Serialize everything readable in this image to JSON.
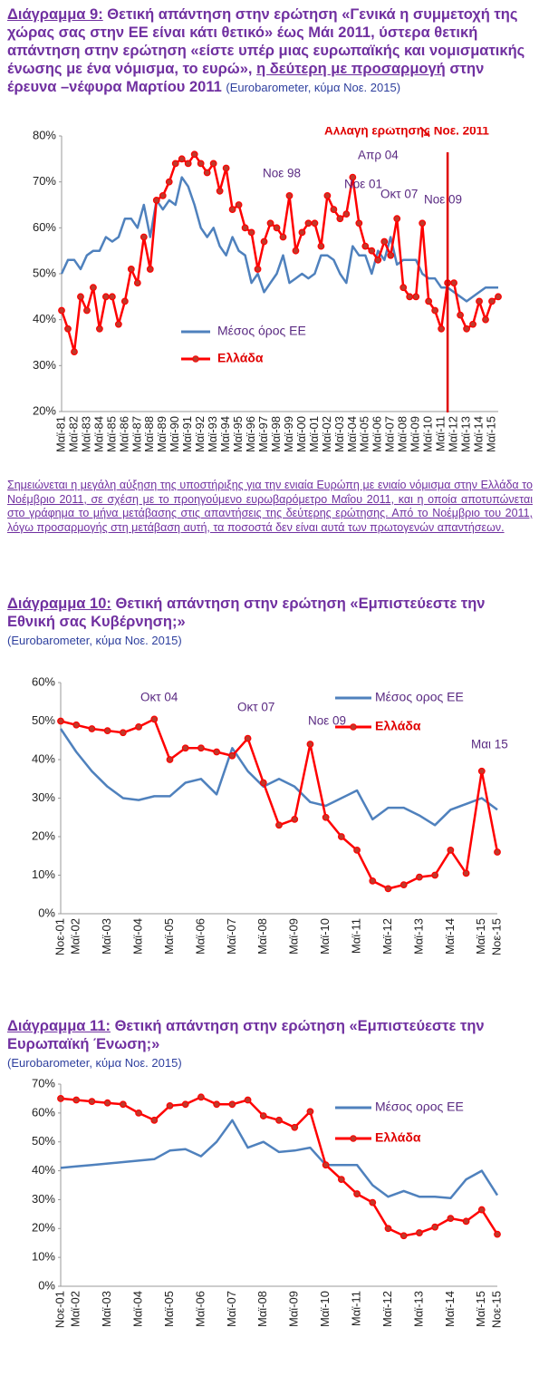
{
  "chart_data": [
    {
      "type": "line",
      "label": "Διάγραμμα 9:",
      "title": "Θετική απάντηση στην ερώτηση «Γενικά η συμμετοχή της χώρας σας στην ΕΕ είναι κάτι θετικό» έως Μάι 2011, ύστερα θετική απάντηση στην ερώτηση «είστε υπέρ μιας ευρωπαϊκής και νομισματικής ένωσης με ένα νόμισμα, το ευρώ»,",
      "title_underlined": "η δεύτερη με προσαρμογή",
      "title_end": "στην έρευνα –νέφυρα Μαρτίου 2011",
      "source": "(Eurobarometer, κύμα Νοε. 2015)",
      "categories": [
        "Μαϊ-81",
        null,
        "Μαϊ-82",
        null,
        "Μαϊ-83",
        null,
        "Μαϊ-84",
        null,
        "Μαϊ-85",
        null,
        "Μαϊ-86",
        null,
        "Μαϊ-87",
        null,
        "Μαϊ-88",
        null,
        "Μαϊ-89",
        null,
        "Μαϊ-90",
        null,
        "Μαϊ-91",
        null,
        "Μαϊ-92",
        null,
        "Μαϊ-93",
        null,
        "Μαϊ-94",
        null,
        "Μαϊ-95",
        null,
        "Μαϊ-96",
        null,
        "Μαϊ-97",
        null,
        "Μαϊ-98",
        null,
        "Μαϊ-99",
        null,
        "Μαϊ-00",
        null,
        "Μαϊ-01",
        null,
        "Μαϊ-02",
        null,
        "Μαϊ-03",
        null,
        "Μαϊ-04",
        null,
        "Μαϊ-05",
        null,
        "Μαϊ-06",
        null,
        "Μαϊ-07",
        null,
        "Μαϊ-08",
        null,
        "Μαϊ-09",
        null,
        "Μαϊ-10",
        null,
        "Μαϊ-11",
        null,
        "Μαϊ-12",
        null,
        "Μαϊ-13",
        null,
        "Μαϊ-14",
        null,
        "Μαϊ-15",
        null
      ],
      "series": [
        {
          "name": "Μέσος όρος ΕΕ",
          "color": "#4f81bd",
          "values": [
            50,
            53,
            53,
            51,
            54,
            55,
            55,
            58,
            57,
            58,
            62,
            62,
            60,
            65,
            58,
            66,
            64,
            66,
            65,
            71,
            69,
            65,
            60,
            58,
            60,
            56,
            54,
            58,
            55,
            54,
            48,
            50,
            46,
            48,
            50,
            54,
            48,
            49,
            50,
            49,
            50,
            54,
            54,
            53,
            50,
            48,
            56,
            54,
            54,
            50,
            55,
            53,
            58,
            52,
            53,
            53,
            53,
            50,
            49,
            49,
            47,
            47,
            46,
            45,
            44,
            45,
            46,
            47,
            47,
            47
          ]
        },
        {
          "name": "Ελλάδα",
          "color": "#ff0000",
          "values": [
            42,
            38,
            33,
            45,
            42,
            47,
            38,
            45,
            45,
            39,
            44,
            51,
            48,
            58,
            51,
            66,
            67,
            70,
            74,
            75,
            74,
            76,
            74,
            72,
            74,
            68,
            73,
            64,
            65,
            60,
            59,
            51,
            57,
            61,
            60,
            58,
            67,
            55,
            59,
            61,
            61,
            56,
            67,
            64,
            62,
            63,
            71,
            61,
            56,
            55,
            53,
            57,
            54,
            62,
            47,
            45,
            45,
            61,
            44,
            42,
            38,
            48,
            48,
            41,
            38,
            39,
            44,
            40,
            44,
            45
          ]
        }
      ],
      "ylim": [
        20,
        80
      ],
      "yticks": [
        {
          "value": 20,
          "label": "20%"
        },
        {
          "value": 30,
          "label": "30%"
        },
        {
          "value": 40,
          "label": "40%"
        },
        {
          "value": 50,
          "label": "50%"
        },
        {
          "value": 60,
          "label": "60%"
        },
        {
          "value": 70,
          "label": "70%"
        },
        {
          "value": 80,
          "label": "80%"
        }
      ],
      "grid": false,
      "legend": "lower left",
      "annotations": [
        "Αλλαγή ερώτησης Νοε. 2011",
        "Νοε 98",
        "Νοε 01",
        "Απρ 04",
        "Οκτ 07",
        "Νοε 09"
      ]
    },
    {
      "type": "line",
      "label": "Διάγραμμα 10:",
      "title": "Θετική απάντηση στην ερώτηση «Εμπιστεύεστε την Εθνική σας Κυβέρνηση;»",
      "source": "(Eurobarometer, κύμα Νοε. 2015)",
      "categories": [
        "Νοε-01",
        "Μαϊ-02",
        null,
        "Μαϊ-03",
        null,
        "Μαϊ-04",
        null,
        "Μαϊ-05",
        null,
        "Μαϊ-06",
        null,
        "Μαϊ-07",
        null,
        "Μαϊ-08",
        null,
        "Μαϊ-09",
        null,
        "Μαϊ-10",
        null,
        "Μαϊ-11",
        null,
        "Μαϊ-12",
        null,
        "Μαϊ-13",
        null,
        "Μαϊ-14",
        null,
        "Μαϊ-15",
        "Νοε-15"
      ],
      "series": [
        {
          "name": "Μέσος ορος ΕΕ",
          "color": "#4f81bd",
          "values": [
            48,
            42,
            37,
            33,
            30,
            29.5,
            30.5,
            30.5,
            34,
            35,
            31,
            43,
            37,
            33,
            35,
            33,
            29,
            28,
            30,
            32,
            24.5,
            27.5,
            27.5,
            25.5,
            23,
            27,
            28.5,
            30,
            27
          ]
        },
        {
          "name": "Ελλάδα",
          "color": "#ff0000",
          "values": [
            50,
            49,
            48,
            47.5,
            47,
            48.5,
            50.5,
            40,
            43,
            43,
            42,
            41,
            45.5,
            34,
            23,
            24.5,
            44,
            25,
            20,
            16.5,
            8.5,
            6.5,
            7.5,
            9.5,
            10,
            16.5,
            10.5,
            37,
            16
          ]
        }
      ],
      "ylim": [
        0,
        60
      ],
      "yticks": [
        {
          "value": 0,
          "label": "0%"
        },
        {
          "value": 10,
          "label": "10%"
        },
        {
          "value": 20,
          "label": "20%"
        },
        {
          "value": 30,
          "label": "30%"
        },
        {
          "value": 40,
          "label": "40%"
        },
        {
          "value": 50,
          "label": "50%"
        },
        {
          "value": 60,
          "label": "60%"
        }
      ],
      "grid": false,
      "legend": "upper right",
      "annotations": [
        "Οκτ 04",
        "Οκτ 07",
        "Νοε 09",
        "Μαι 15"
      ]
    },
    {
      "type": "line",
      "label": "Διάγραμμα 11:",
      "title": "Θετική απάντηση στην ερώτηση «Εμπιστεύεστε την Ευρωπαϊκή Ένωση;»",
      "source": "(Eurobarometer, κύμα Νοε. 2015)",
      "categories": [
        "Νοε-01",
        "Μαϊ-02",
        null,
        "Μαϊ-03",
        null,
        "Μαϊ-04",
        null,
        "Μαϊ-05",
        null,
        "Μαϊ-06",
        null,
        "Μαϊ-07",
        null,
        "Μαϊ-08",
        null,
        "Μαϊ-09",
        null,
        "Μαϊ-10",
        null,
        "Μαϊ-11",
        null,
        "Μαϊ-12",
        null,
        "Μαϊ-13",
        null,
        "Μαϊ-14",
        null,
        "Μαϊ-15",
        "Νοε-15"
      ],
      "series": [
        {
          "name": "Μέσος ορος ΕΕ",
          "color": "#4f81bd",
          "values": [
            41,
            41.5,
            42,
            42.5,
            43,
            43.5,
            44,
            47,
            47.5,
            45,
            50,
            57.5,
            48,
            50,
            46.5,
            47,
            48,
            42,
            42,
            42,
            35,
            31,
            33,
            31,
            31,
            30.5,
            37,
            40,
            31.5
          ]
        },
        {
          "name": "Ελλάδα",
          "color": "#ff0000",
          "values": [
            65,
            64.5,
            64,
            63.5,
            63,
            60,
            57.5,
            62.5,
            63,
            65.5,
            63,
            63,
            64.5,
            59,
            57.5,
            55,
            60.5,
            42,
            37,
            32,
            29,
            20,
            17.5,
            18.5,
            20.5,
            23.5,
            22.5,
            26.5,
            18
          ]
        }
      ],
      "ylim": [
        0,
        70
      ],
      "yticks": [
        {
          "value": 0,
          "label": "0%"
        },
        {
          "value": 10,
          "label": "10%"
        },
        {
          "value": 20,
          "label": "20%"
        },
        {
          "value": 30,
          "label": "30%"
        },
        {
          "value": 40,
          "label": "40%"
        },
        {
          "value": 50,
          "label": "50%"
        },
        {
          "value": 60,
          "label": "60%"
        },
        {
          "value": 70,
          "label": "70%"
        }
      ],
      "grid": false,
      "legend": "upper right"
    }
  ],
  "note": "Σημειώνεται η μεγάλη αύξηση της υποστήριξης για την ενιαία Ευρώπη με ενιαίο νόμισμα στην Ελλάδα το Νοέμβριο 2011, σε σχέση με το προηγούμενο ευρωβαρόμετρο Μαΐου 2011, και η οποία αποτυπώνεται στο γράφημα το μήνα μετάβασης στις απαντήσεις της δεύτερης ερώτησης. Από το Νοέμβριο του 2011, λόγω προσαρμογής στη μετάβαση αυτή, τα ποσοστά δεν είναι αυτά των πρωτογενών απαντήσεων."
}
